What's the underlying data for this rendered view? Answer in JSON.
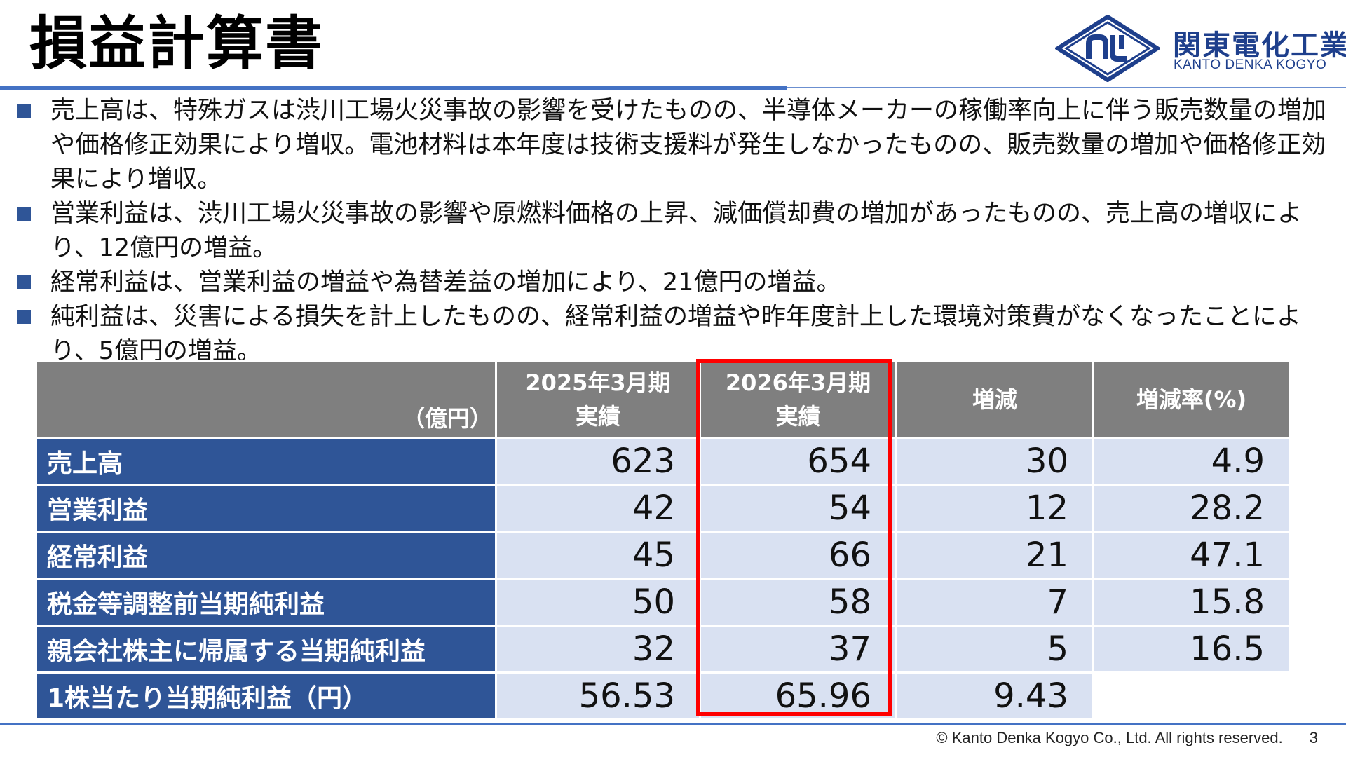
{
  "header": {
    "title": "損益計算書",
    "logo": {
      "name_jp": "関東電化工業",
      "name_en": "KANTO DENKA KOGYO",
      "mark_letters": "ηԽ",
      "color": "#1e3f8c"
    }
  },
  "bullets": [
    "売上高は、特殊ガスは渋川工場火災事故の影響を受けたものの、半導体メーカーの稼働率向上に伴う販売数量の増加や価格修正効果により増収。電池材料は本年度は技術支援料が発生しなかったものの、販売数量の増加や価格修正効果により増収。",
    "営業利益は、渋川工場火災事故の影響や原燃料価格の上昇、減価償却費の増加があったものの、売上高の増収により、12億円の増益。",
    "経常利益は、営業利益の増益や為替差益の増加により、21億円の増益。",
    "純利益は、災害による損失を計上したものの、経常利益の増益や昨年度計上した環境対策費がなくなったことにより、5億円の増益。"
  ],
  "table": {
    "unit": "（億円）",
    "columns": [
      {
        "line1": "2025年3月期",
        "line2": "実績"
      },
      {
        "line1": "2026年3月期",
        "line2": "実績"
      },
      {
        "line1": "増減",
        "line2": ""
      },
      {
        "line1": "増減率(%)",
        "line2": ""
      }
    ],
    "rows": [
      {
        "label": "売上高",
        "values": [
          "623",
          "654",
          "30",
          "4.9"
        ]
      },
      {
        "label": "営業利益",
        "values": [
          "42",
          "54",
          "12",
          "28.2"
        ]
      },
      {
        "label": "経常利益",
        "values": [
          "45",
          "66",
          "21",
          "47.1"
        ]
      },
      {
        "label": "税金等調整前当期純利益",
        "values": [
          "50",
          "58",
          "7",
          "15.8"
        ]
      },
      {
        "label": "親会社株主に帰属する当期純利益",
        "values": [
          "32",
          "37",
          "5",
          "16.5"
        ]
      },
      {
        "label": "1株当たり当期純利益（円）",
        "values": [
          "56.53",
          "65.96",
          "9.43",
          ""
        ]
      }
    ]
  },
  "colors": {
    "header_gray": "#7f7f7f",
    "row_label_blue": "#2f5597",
    "cell_light_blue": "#d9e1f2",
    "highlight_red": "#ff0000",
    "accent_blue": "#4472c4"
  },
  "footer": {
    "copyright": "© Kanto Denka Kogyo Co., Ltd. All rights reserved.",
    "page": "3"
  }
}
